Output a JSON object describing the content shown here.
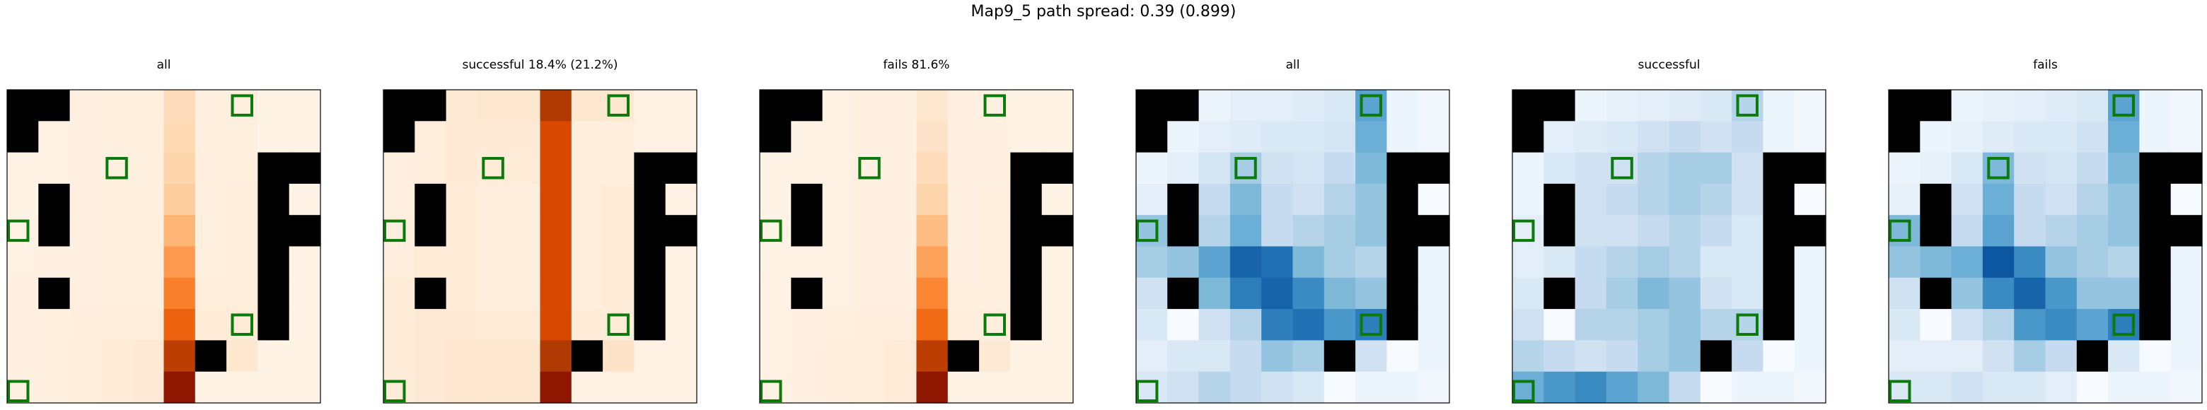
{
  "suptitle": "Map9_5 path spread: 0.39 (0.899)",
  "colors": {
    "obstacle": "#000000",
    "goal_outline": "#0a7a0a",
    "frame": "#000000",
    "oranges_low": "#fff5eb",
    "oranges_high": "#7f0000",
    "blues_low": "#f7fbff",
    "blues_high": "#08306b"
  },
  "chart_data": [
    {
      "type": "heatmap",
      "title": "all",
      "colormap": "Oranges",
      "grid": [
        10,
        10
      ],
      "rows": [
        [
          0.0,
          0.0,
          0.04,
          0.05,
          0.05,
          0.18,
          0.05,
          0.05,
          0.02,
          0.02
        ],
        [
          0.0,
          0.03,
          0.04,
          0.05,
          0.05,
          0.2,
          0.05,
          0.05,
          0.02,
          0.02
        ],
        [
          0.02,
          0.03,
          0.04,
          0.05,
          0.05,
          0.22,
          0.05,
          0.05,
          0.0,
          0.0
        ],
        [
          0.02,
          0.0,
          0.04,
          0.05,
          0.05,
          0.26,
          0.05,
          0.07,
          0.0,
          0.02
        ],
        [
          0.03,
          0.0,
          0.04,
          0.05,
          0.05,
          0.35,
          0.05,
          0.07,
          0.0,
          0.0
        ],
        [
          0.03,
          0.04,
          0.04,
          0.05,
          0.05,
          0.45,
          0.05,
          0.07,
          0.02,
          0.02
        ],
        [
          0.04,
          0.0,
          0.04,
          0.05,
          0.05,
          0.55,
          0.07,
          0.07,
          0.0,
          0.02
        ],
        [
          0.04,
          0.05,
          0.06,
          0.07,
          0.07,
          0.65,
          0.08,
          0.08,
          0.0,
          0.02
        ],
        [
          0.04,
          0.05,
          0.07,
          0.08,
          0.1,
          0.82,
          0.12,
          0.12,
          0.02,
          0.02
        ],
        [
          0.04,
          0.05,
          0.07,
          0.08,
          0.1,
          0.95,
          0.02,
          0.02,
          0.02,
          0.02
        ]
      ],
      "obstacles": [
        [
          0,
          0
        ],
        [
          0,
          1
        ],
        [
          1,
          0
        ],
        [
          2,
          8
        ],
        [
          2,
          9
        ],
        [
          3,
          1
        ],
        [
          3,
          8
        ],
        [
          4,
          1
        ],
        [
          4,
          8
        ],
        [
          4,
          9
        ],
        [
          5,
          8
        ],
        [
          6,
          1
        ],
        [
          6,
          8
        ],
        [
          7,
          8
        ],
        [
          8,
          6
        ]
      ],
      "goals": [
        [
          0,
          7
        ],
        [
          2,
          3
        ],
        [
          4,
          0
        ],
        [
          7,
          7
        ],
        [
          10,
          0
        ]
      ]
    },
    {
      "type": "heatmap",
      "title": "successful 18.4% (21.2%)",
      "colormap": "Oranges",
      "grid": [
        10,
        10
      ],
      "rows": [
        [
          0.0,
          0.0,
          0.1,
          0.12,
          0.12,
          0.85,
          0.12,
          0.12,
          0.03,
          0.03
        ],
        [
          0.0,
          0.06,
          0.1,
          0.1,
          0.1,
          0.75,
          0.06,
          0.06,
          0.03,
          0.03
        ],
        [
          0.04,
          0.06,
          0.1,
          0.08,
          0.08,
          0.75,
          0.06,
          0.06,
          0.0,
          0.0
        ],
        [
          0.04,
          0.0,
          0.08,
          0.06,
          0.06,
          0.75,
          0.06,
          0.08,
          0.0,
          0.03
        ],
        [
          0.06,
          0.0,
          0.08,
          0.06,
          0.06,
          0.75,
          0.06,
          0.08,
          0.0,
          0.0
        ],
        [
          0.06,
          0.08,
          0.08,
          0.06,
          0.06,
          0.75,
          0.06,
          0.08,
          0.03,
          0.03
        ],
        [
          0.08,
          0.0,
          0.08,
          0.06,
          0.06,
          0.75,
          0.06,
          0.08,
          0.0,
          0.03
        ],
        [
          0.08,
          0.1,
          0.1,
          0.08,
          0.08,
          0.75,
          0.08,
          0.08,
          0.0,
          0.03
        ],
        [
          0.08,
          0.1,
          0.12,
          0.12,
          0.12,
          0.85,
          0.14,
          0.14,
          0.03,
          0.03
        ],
        [
          0.08,
          0.1,
          0.12,
          0.12,
          0.12,
          0.95,
          0.03,
          0.03,
          0.03,
          0.03
        ]
      ],
      "obstacles": [
        [
          0,
          0
        ],
        [
          0,
          1
        ],
        [
          1,
          0
        ],
        [
          2,
          8
        ],
        [
          2,
          9
        ],
        [
          3,
          1
        ],
        [
          3,
          8
        ],
        [
          4,
          1
        ],
        [
          4,
          8
        ],
        [
          4,
          9
        ],
        [
          5,
          8
        ],
        [
          6,
          1
        ],
        [
          6,
          8
        ],
        [
          7,
          8
        ],
        [
          8,
          6
        ]
      ],
      "goals": [
        [
          0,
          7
        ],
        [
          2,
          3
        ],
        [
          4,
          0
        ],
        [
          7,
          7
        ],
        [
          10,
          0
        ]
      ]
    },
    {
      "type": "heatmap",
      "title": "fails 81.6%",
      "colormap": "Oranges",
      "grid": [
        10,
        10
      ],
      "rows": [
        [
          0.0,
          0.0,
          0.03,
          0.04,
          0.04,
          0.12,
          0.04,
          0.04,
          0.02,
          0.02
        ],
        [
          0.0,
          0.02,
          0.03,
          0.04,
          0.04,
          0.14,
          0.04,
          0.04,
          0.02,
          0.02
        ],
        [
          0.02,
          0.02,
          0.03,
          0.04,
          0.04,
          0.18,
          0.04,
          0.04,
          0.0,
          0.0
        ],
        [
          0.02,
          0.0,
          0.03,
          0.04,
          0.04,
          0.22,
          0.04,
          0.05,
          0.0,
          0.02
        ],
        [
          0.02,
          0.0,
          0.03,
          0.04,
          0.04,
          0.32,
          0.04,
          0.05,
          0.0,
          0.0
        ],
        [
          0.02,
          0.03,
          0.03,
          0.04,
          0.04,
          0.42,
          0.04,
          0.05,
          0.02,
          0.02
        ],
        [
          0.03,
          0.0,
          0.03,
          0.04,
          0.04,
          0.52,
          0.05,
          0.05,
          0.0,
          0.02
        ],
        [
          0.03,
          0.04,
          0.05,
          0.06,
          0.06,
          0.62,
          0.06,
          0.06,
          0.0,
          0.02
        ],
        [
          0.03,
          0.04,
          0.06,
          0.07,
          0.09,
          0.82,
          0.1,
          0.1,
          0.02,
          0.02
        ],
        [
          0.03,
          0.04,
          0.06,
          0.07,
          0.09,
          0.95,
          0.02,
          0.02,
          0.02,
          0.02
        ]
      ],
      "obstacles": [
        [
          0,
          0
        ],
        [
          0,
          1
        ],
        [
          1,
          0
        ],
        [
          2,
          8
        ],
        [
          2,
          9
        ],
        [
          3,
          1
        ],
        [
          3,
          8
        ],
        [
          4,
          1
        ],
        [
          4,
          8
        ],
        [
          4,
          9
        ],
        [
          5,
          8
        ],
        [
          6,
          1
        ],
        [
          6,
          8
        ],
        [
          7,
          8
        ],
        [
          8,
          6
        ]
      ],
      "goals": [
        [
          0,
          7
        ],
        [
          2,
          3
        ],
        [
          4,
          0
        ],
        [
          7,
          7
        ],
        [
          10,
          0
        ]
      ]
    },
    {
      "type": "heatmap",
      "title": "all",
      "colormap": "Blues",
      "grid": [
        10,
        10
      ],
      "rows": [
        [
          0.0,
          0.0,
          0.05,
          0.1,
          0.1,
          0.12,
          0.15,
          0.55,
          0.05,
          0.03
        ],
        [
          0.0,
          0.05,
          0.1,
          0.12,
          0.15,
          0.15,
          0.18,
          0.5,
          0.05,
          0.03
        ],
        [
          0.05,
          0.1,
          0.18,
          0.35,
          0.2,
          0.18,
          0.25,
          0.45,
          0.0,
          0.0
        ],
        [
          0.1,
          0.0,
          0.25,
          0.45,
          0.25,
          0.2,
          0.3,
          0.4,
          0.0,
          0.0
        ],
        [
          0.4,
          0.0,
          0.3,
          0.5,
          0.25,
          0.3,
          0.35,
          0.4,
          0.0,
          0.0
        ],
        [
          0.35,
          0.4,
          0.55,
          0.8,
          0.75,
          0.45,
          0.35,
          0.3,
          0.0,
          0.05
        ],
        [
          0.2,
          0.25,
          0.45,
          0.7,
          0.8,
          0.65,
          0.45,
          0.4,
          0.0,
          0.05
        ],
        [
          0.15,
          0.0,
          0.2,
          0.3,
          0.7,
          0.75,
          0.6,
          0.7,
          0.1,
          0.05
        ],
        [
          0.1,
          0.15,
          0.15,
          0.25,
          0.4,
          0.35,
          0.3,
          0.2,
          0.0,
          0.05
        ],
        [
          0.15,
          0.2,
          0.3,
          0.25,
          0.2,
          0.15,
          0.0,
          0.05,
          0.05,
          0.03
        ]
      ],
      "obstacles": [
        [
          0,
          0
        ],
        [
          0,
          1
        ],
        [
          1,
          0
        ],
        [
          2,
          8
        ],
        [
          2,
          9
        ],
        [
          3,
          1
        ],
        [
          3,
          8
        ],
        [
          4,
          1
        ],
        [
          4,
          8
        ],
        [
          4,
          9
        ],
        [
          5,
          8
        ],
        [
          6,
          1
        ],
        [
          6,
          8
        ],
        [
          7,
          8
        ],
        [
          8,
          6
        ]
      ],
      "goals": [
        [
          0,
          7
        ],
        [
          2,
          3
        ],
        [
          4,
          0
        ],
        [
          7,
          7
        ],
        [
          10,
          0
        ]
      ]
    },
    {
      "type": "heatmap",
      "title": "successful",
      "colormap": "Blues",
      "grid": [
        10,
        10
      ],
      "rows": [
        [
          0.0,
          0.0,
          0.05,
          0.08,
          0.1,
          0.12,
          0.15,
          0.3,
          0.05,
          0.03
        ],
        [
          0.0,
          0.1,
          0.12,
          0.15,
          0.2,
          0.25,
          0.2,
          0.25,
          0.05,
          0.03
        ],
        [
          0.05,
          0.15,
          0.2,
          0.2,
          0.3,
          0.35,
          0.35,
          0.2,
          0.0,
          0.0
        ],
        [
          0.05,
          0.0,
          0.2,
          0.25,
          0.3,
          0.35,
          0.3,
          0.2,
          0.0,
          0.0
        ],
        [
          0.1,
          0.0,
          0.2,
          0.2,
          0.25,
          0.3,
          0.25,
          0.15,
          0.0,
          0.0
        ],
        [
          0.1,
          0.15,
          0.25,
          0.3,
          0.35,
          0.3,
          0.15,
          0.15,
          0.0,
          0.05
        ],
        [
          0.15,
          0.2,
          0.25,
          0.35,
          0.45,
          0.4,
          0.2,
          0.15,
          0.0,
          0.05
        ],
        [
          0.2,
          0.0,
          0.3,
          0.3,
          0.35,
          0.4,
          0.3,
          0.3,
          0.1,
          0.05
        ],
        [
          0.3,
          0.25,
          0.2,
          0.25,
          0.35,
          0.4,
          0.45,
          0.25,
          0.0,
          0.05
        ],
        [
          0.5,
          0.6,
          0.65,
          0.55,
          0.45,
          0.25,
          0.0,
          0.05,
          0.05,
          0.03
        ]
      ],
      "obstacles": [
        [
          0,
          0
        ],
        [
          0,
          1
        ],
        [
          1,
          0
        ],
        [
          2,
          8
        ],
        [
          2,
          9
        ],
        [
          3,
          1
        ],
        [
          3,
          8
        ],
        [
          4,
          1
        ],
        [
          4,
          8
        ],
        [
          4,
          9
        ],
        [
          5,
          8
        ],
        [
          6,
          1
        ],
        [
          6,
          8
        ],
        [
          7,
          8
        ],
        [
          8,
          6
        ]
      ],
      "goals": [
        [
          0,
          7
        ],
        [
          2,
          3
        ],
        [
          4,
          0
        ],
        [
          7,
          7
        ],
        [
          10,
          0
        ]
      ]
    },
    {
      "type": "heatmap",
      "title": "fails",
      "colormap": "Blues",
      "grid": [
        10,
        10
      ],
      "rows": [
        [
          0.0,
          0.0,
          0.05,
          0.08,
          0.1,
          0.12,
          0.15,
          0.55,
          0.05,
          0.03
        ],
        [
          0.0,
          0.05,
          0.08,
          0.12,
          0.15,
          0.15,
          0.2,
          0.5,
          0.05,
          0.03
        ],
        [
          0.05,
          0.08,
          0.15,
          0.45,
          0.2,
          0.18,
          0.25,
          0.45,
          0.0,
          0.0
        ],
        [
          0.08,
          0.0,
          0.2,
          0.5,
          0.25,
          0.2,
          0.3,
          0.4,
          0.0,
          0.0
        ],
        [
          0.45,
          0.0,
          0.25,
          0.55,
          0.25,
          0.3,
          0.35,
          0.4,
          0.0,
          0.0
        ],
        [
          0.4,
          0.45,
          0.5,
          0.85,
          0.65,
          0.4,
          0.35,
          0.3,
          0.0,
          0.05
        ],
        [
          0.2,
          0.25,
          0.4,
          0.65,
          0.8,
          0.6,
          0.4,
          0.4,
          0.0,
          0.05
        ],
        [
          0.15,
          0.0,
          0.2,
          0.3,
          0.6,
          0.65,
          0.55,
          0.7,
          0.1,
          0.05
        ],
        [
          0.1,
          0.1,
          0.1,
          0.2,
          0.35,
          0.25,
          0.2,
          0.15,
          0.0,
          0.05
        ],
        [
          0.15,
          0.15,
          0.2,
          0.15,
          0.15,
          0.1,
          0.0,
          0.05,
          0.05,
          0.03
        ]
      ],
      "obstacles": [
        [
          0,
          0
        ],
        [
          0,
          1
        ],
        [
          1,
          0
        ],
        [
          2,
          8
        ],
        [
          2,
          9
        ],
        [
          3,
          1
        ],
        [
          3,
          8
        ],
        [
          4,
          1
        ],
        [
          4,
          8
        ],
        [
          4,
          9
        ],
        [
          5,
          8
        ],
        [
          6,
          1
        ],
        [
          6,
          8
        ],
        [
          7,
          8
        ],
        [
          8,
          6
        ]
      ],
      "goals": [
        [
          0,
          7
        ],
        [
          2,
          3
        ],
        [
          4,
          0
        ],
        [
          7,
          7
        ],
        [
          10,
          0
        ]
      ]
    }
  ]
}
